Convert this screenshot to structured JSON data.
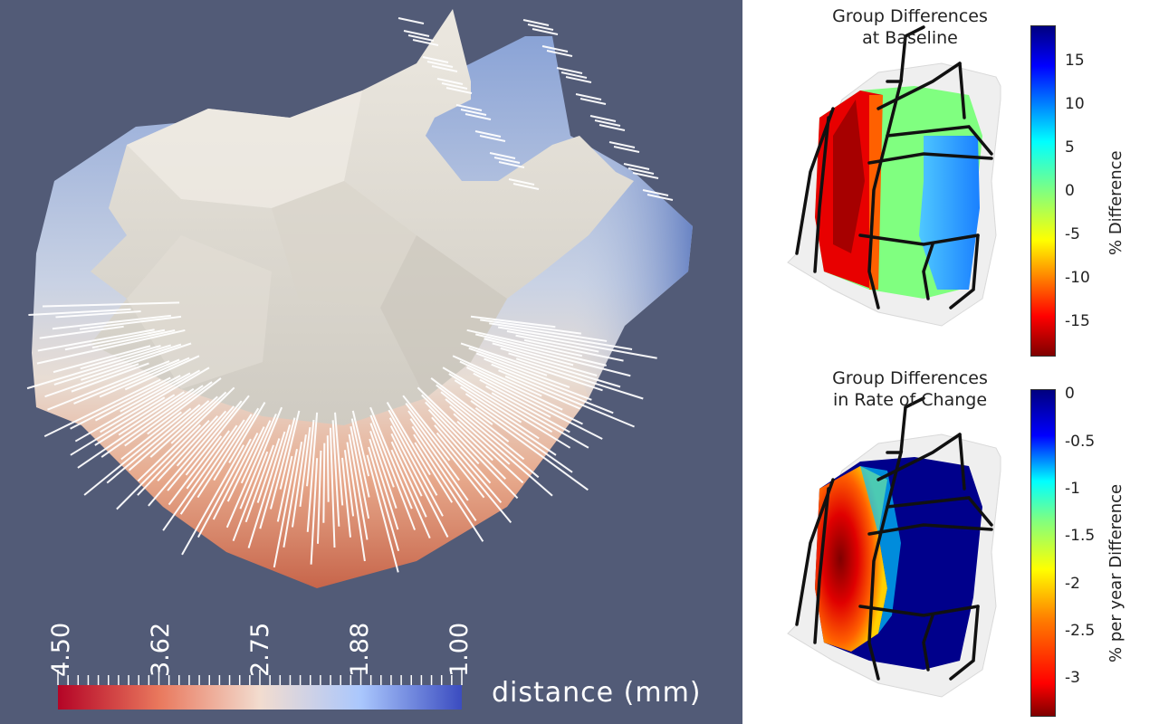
{
  "left_panel": {
    "colorbar": {
      "title": "distance (mm)",
      "ticks": [
        "4.50",
        "3.62",
        "2.75",
        "1.88",
        "1.00"
      ],
      "colors": [
        "#b40426",
        "#f2c4ae",
        "#dddcdc",
        "#9ebcf9",
        "#3b4cc0"
      ]
    }
  },
  "top_panel": {
    "title_line1": "Group Differences",
    "title_line2": "at Baseline",
    "colorbar": {
      "ticks": [
        "15",
        "10",
        "5",
        "0",
        "-5",
        "-10",
        "-15"
      ],
      "label": "% Difference",
      "colormap": "jet"
    }
  },
  "bottom_panel": {
    "title_line1": "Group Differences",
    "title_line2": "in Rate of Change",
    "colorbar": {
      "ticks": [
        "0",
        "-0.5",
        "-1",
        "-1.5",
        "-2",
        "-2.5",
        "-3"
      ],
      "label": "% per year Difference",
      "colormap": "jet"
    }
  }
}
